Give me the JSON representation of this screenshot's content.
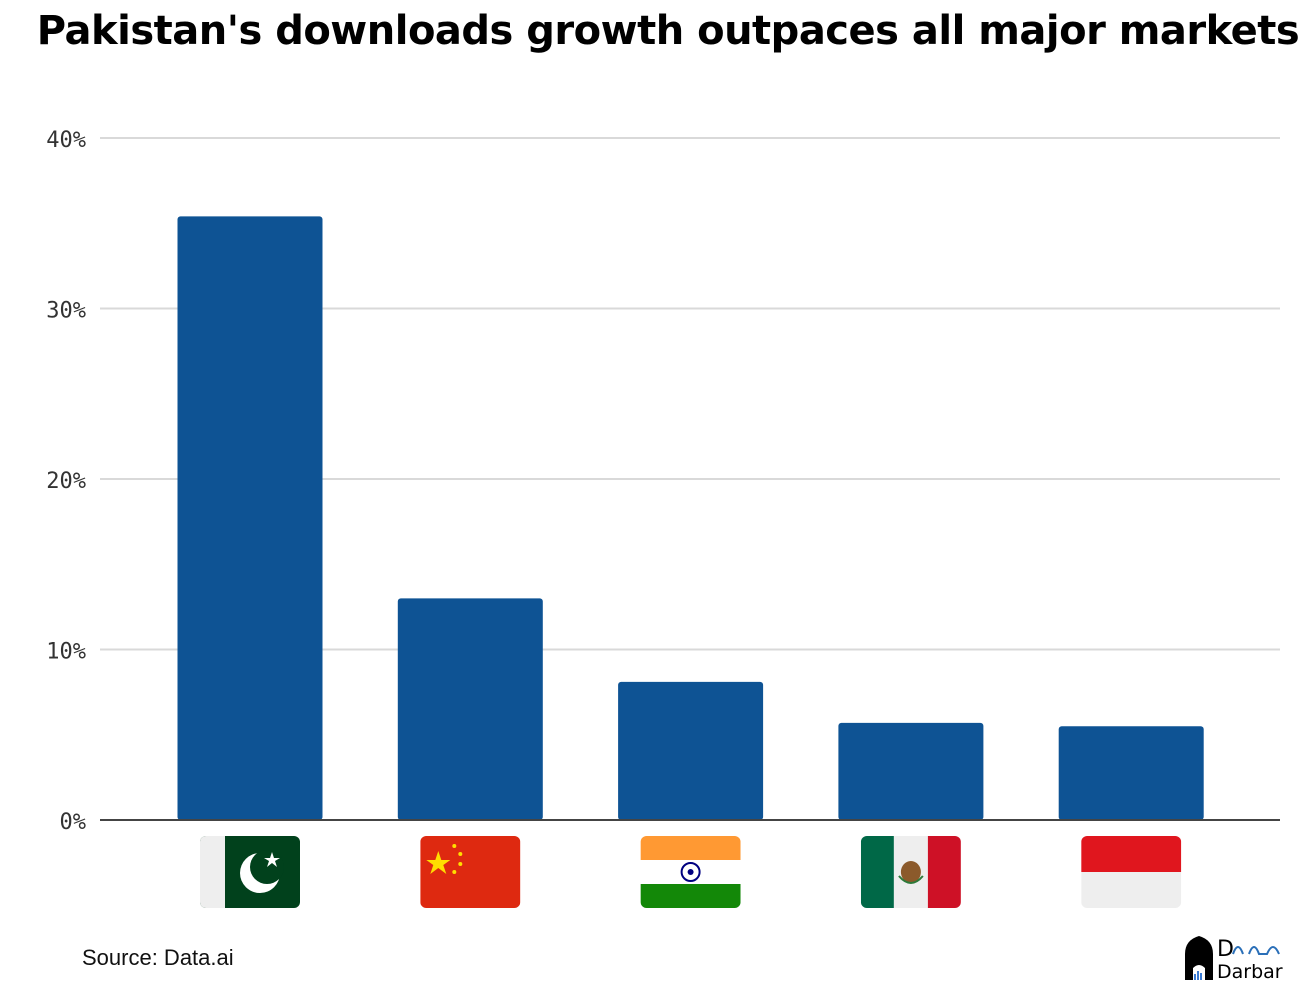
{
  "title": "Pakistan's downloads growth outpaces all major markets",
  "source": "Source: Data.ai",
  "logo": {
    "line1": "DaTa",
    "line2": "Darbar"
  },
  "colors": {
    "bar": "#0e5394",
    "grid": "#d9d9d9",
    "axis": "#444444"
  },
  "chart_data": {
    "type": "bar",
    "title": "Pakistan's downloads growth outpaces all major markets",
    "categories_icons": [
      "pakistan-flag-icon",
      "china-flag-icon",
      "india-flag-icon",
      "mexico-flag-icon",
      "indonesia-flag-icon"
    ],
    "values": [
      35.4,
      13.0,
      8.1,
      5.7,
      5.5
    ],
    "unit": "%",
    "ylim": [
      0,
      40
    ],
    "yticks": [
      0,
      10,
      20,
      30,
      40
    ],
    "ytick_labels": [
      "0%",
      "10%",
      "20%",
      "30%",
      "40%"
    ],
    "grid": true,
    "xlabel": "",
    "ylabel": ""
  }
}
